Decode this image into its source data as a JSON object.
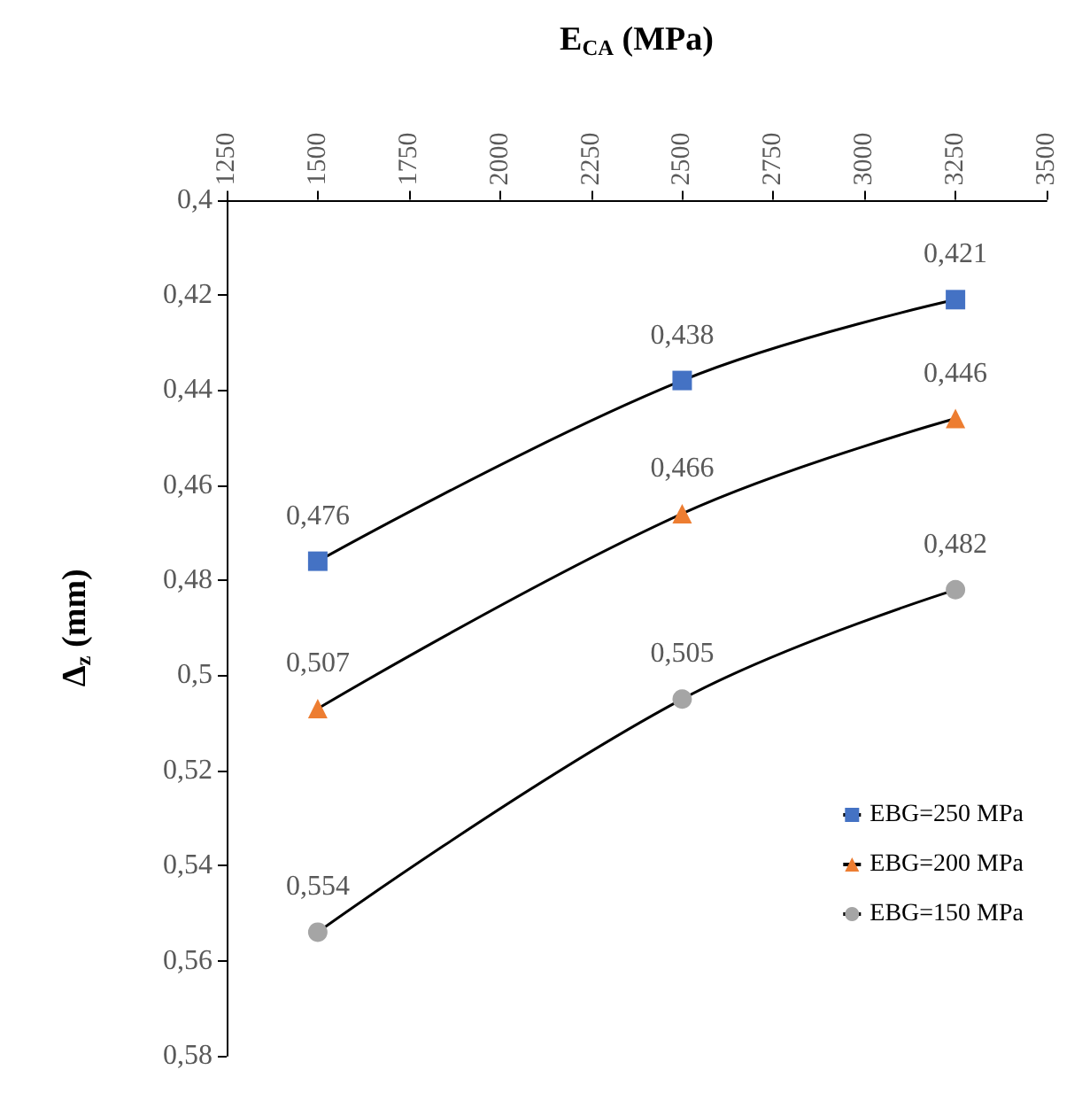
{
  "chart_data": {
    "type": "line",
    "xlabel": "E$_{CA}$ (MPa)",
    "ylabel": "Δ$_{z}$ (mm)",
    "xlim": [
      1250,
      3500
    ],
    "xticks": [
      1250,
      1500,
      1750,
      2000,
      2250,
      2500,
      2750,
      3000,
      3250,
      3500
    ],
    "ylim": [
      0.58,
      0.4
    ],
    "yticks": [
      {
        "value": 0.4,
        "label": "0,4"
      },
      {
        "value": 0.42,
        "label": "0,42"
      },
      {
        "value": 0.44,
        "label": "0,44"
      },
      {
        "value": 0.46,
        "label": "0,46"
      },
      {
        "value": 0.48,
        "label": "0,48"
      },
      {
        "value": 0.5,
        "label": "0,5"
      },
      {
        "value": 0.52,
        "label": "0,52"
      },
      {
        "value": 0.54,
        "label": "0,54"
      },
      {
        "value": 0.56,
        "label": "0,56"
      },
      {
        "value": 0.58,
        "label": "0,58"
      }
    ],
    "x": [
      1500,
      2500,
      3250
    ],
    "series": [
      {
        "name": "EBG=250 MPa",
        "color": "#4472c4",
        "marker": "square",
        "values": [
          0.476,
          0.438,
          0.421
        ],
        "value_labels": [
          "0,476",
          "0,438",
          "0,421"
        ]
      },
      {
        "name": "EBG=200 MPa",
        "color": "#ed7d31",
        "marker": "triangle",
        "values": [
          0.507,
          0.466,
          0.446
        ],
        "value_labels": [
          "0,507",
          "0,466",
          "0,446"
        ]
      },
      {
        "name": "EBG=150 MPa",
        "color": "#a5a5a5",
        "marker": "circle",
        "values": [
          0.554,
          0.505,
          0.482
        ],
        "value_labels": [
          "0,554",
          "0,505",
          "0,482"
        ]
      }
    ],
    "legend": "bottom right",
    "grid": false
  }
}
